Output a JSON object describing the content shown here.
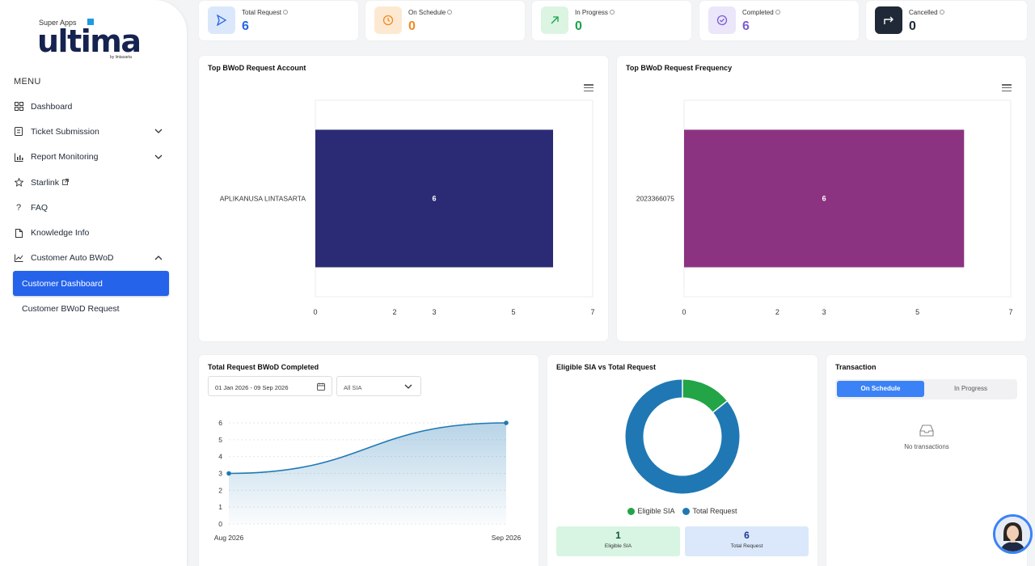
{
  "logo": {
    "super": "Super Apps",
    "word": "ultima",
    "by": "by lintasarta"
  },
  "menu_title": "MENU",
  "nav": [
    {
      "label": "Dashboard",
      "icon": "grid-icon"
    },
    {
      "label": "Ticket Submission",
      "icon": "clipboard-icon"
    },
    {
      "label": "Report Monitoring",
      "icon": "bar-chart-icon"
    },
    {
      "label": "Starlink",
      "icon": "star-icon"
    },
    {
      "label": "FAQ",
      "icon": "question-icon"
    },
    {
      "label": "Knowledge Info",
      "icon": "file-icon"
    },
    {
      "label": "Customer Auto BWoD",
      "icon": "trend-icon"
    },
    {
      "label": "Customer Dashboard",
      "icon": ""
    },
    {
      "label": "Customer BWoD Request",
      "icon": ""
    }
  ],
  "stats": [
    {
      "label": "Total Request",
      "value": "6",
      "color": "#2563eb",
      "bg": "#dbe7fb"
    },
    {
      "label": "On Schedule",
      "value": "0",
      "color": "#f08a24",
      "bg": "#fde9d2"
    },
    {
      "label": "In Progress",
      "value": "0",
      "color": "#16a34a",
      "bg": "#dcf5e3"
    },
    {
      "label": "Completed",
      "value": "6",
      "color": "#7c5cd6",
      "bg": "#ebe6fa"
    },
    {
      "label": "Cancelled",
      "value": "0",
      "color": "#1f2937",
      "bg": "#1f2937"
    }
  ],
  "account_chart": {
    "title": "Top BWoD Request Account",
    "chart_data": {
      "type": "bar",
      "orientation": "horizontal",
      "categories": [
        "APLIKANUSA LINTASARTA"
      ],
      "values": [
        6
      ],
      "xlim": [
        0,
        7
      ],
      "xticks": [
        0,
        2,
        3,
        5,
        7
      ],
      "color": "#2a2a75"
    }
  },
  "frequency_chart": {
    "title": "Top BWoD Request Frequency",
    "chart_data": {
      "type": "bar",
      "orientation": "horizontal",
      "categories": [
        "2023366075"
      ],
      "values": [
        6
      ],
      "xlim": [
        0,
        7
      ],
      "xticks": [
        0,
        2,
        3,
        5,
        7
      ],
      "color": "#8b3380"
    }
  },
  "completed_chart": {
    "title": "Total Request BWoD Completed",
    "date_range": "01 Jan 2026 - 09 Sep 2026",
    "filter": "All SIA",
    "chart_data": {
      "type": "area",
      "x": [
        "Aug 2026",
        "Sep 2026"
      ],
      "values": [
        3,
        6
      ],
      "ylim": [
        0,
        6
      ],
      "yticks": [
        0,
        1,
        2,
        3,
        4,
        5,
        6
      ],
      "color": "#1f78b4"
    }
  },
  "eligible_chart": {
    "title": "Eligible SIA vs Total Request",
    "chart_data": {
      "type": "pie",
      "donut": true,
      "labels": [
        "Eligible SIA",
        "Total Request"
      ],
      "values": [
        1,
        6
      ],
      "colors": [
        "#22a447",
        "#1f78b4"
      ]
    },
    "summary": [
      {
        "value": "1",
        "label": "Eligible SIA",
        "bg": "#d7f5e2",
        "color": "#14532d"
      },
      {
        "value": "6",
        "label": "Total Request",
        "bg": "#dbe8fb",
        "color": "#1e3a8a"
      }
    ]
  },
  "transaction": {
    "title": "Transaction",
    "tab_active": "On Schedule",
    "tab_inactive": "In Progress",
    "empty": "No transactions"
  }
}
